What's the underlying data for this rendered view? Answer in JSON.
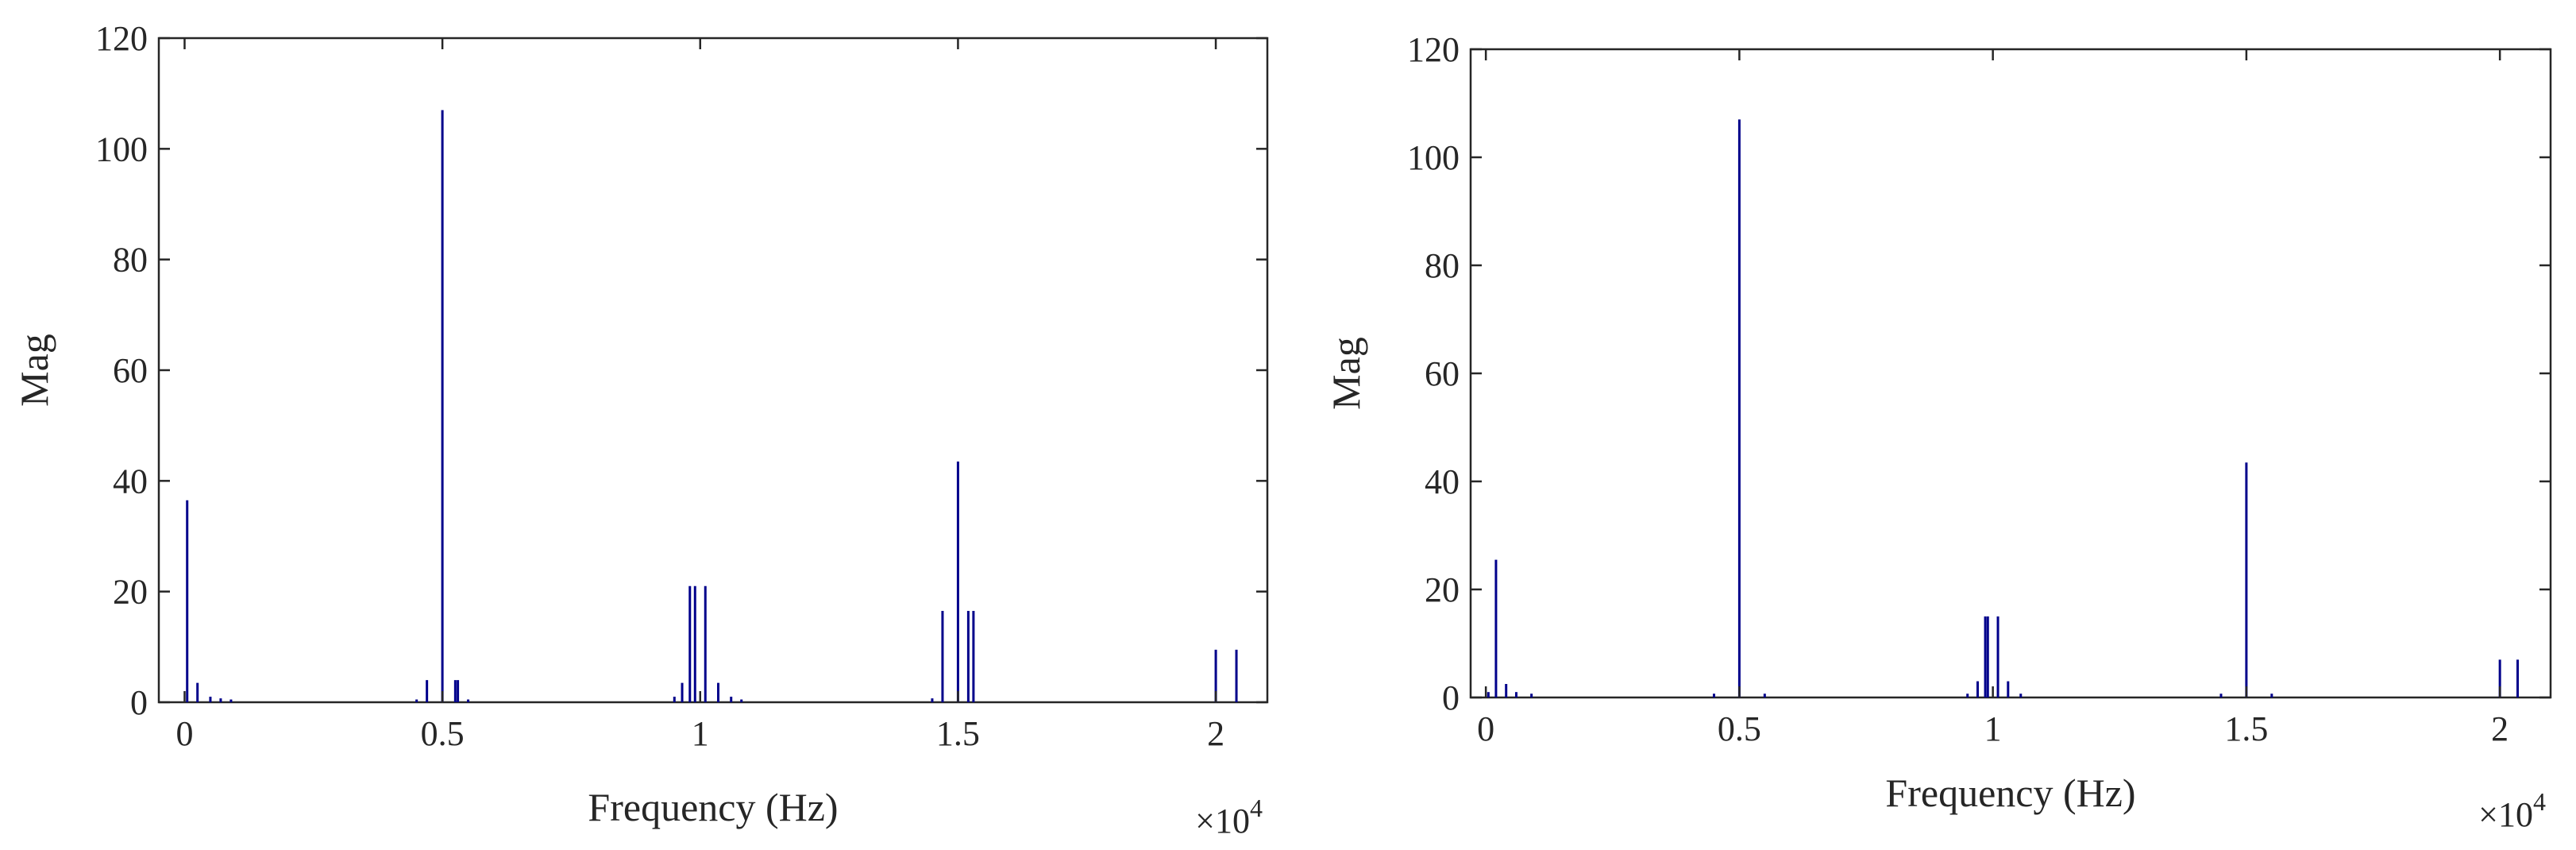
{
  "chart_data": [
    {
      "type": "bar",
      "title": "",
      "xlabel": "Frequency (Hz)",
      "ylabel": "Mag",
      "x_multiplier": "×10",
      "x_multiplier_exp": "4",
      "xlim": [
        -0.05,
        2.1
      ],
      "ylim": [
        0,
        120
      ],
      "xticks": [
        0,
        0.5,
        1,
        1.5,
        2
      ],
      "xtick_labels": [
        "0",
        "0.5",
        "1",
        "1.5",
        "2"
      ],
      "yticks": [
        0,
        20,
        40,
        60,
        80,
        100,
        120
      ],
      "ytick_labels": [
        "0",
        "20",
        "40",
        "60",
        "80",
        "100",
        "120"
      ],
      "color": "#00008b",
      "x": [
        0.005,
        0.025,
        0.05,
        0.07,
        0.09,
        0.45,
        0.47,
        0.5,
        0.525,
        0.53,
        0.55,
        0.95,
        0.965,
        0.98,
        0.99,
        1.01,
        1.035,
        1.06,
        1.08,
        1.45,
        1.47,
        1.5,
        1.52,
        1.53,
        2.0,
        2.04
      ],
      "values": [
        36.5,
        3.5,
        1.0,
        0.7,
        0.5,
        0.5,
        4.0,
        107,
        4.0,
        4.0,
        0.5,
        1.0,
        3.5,
        21,
        21,
        21,
        3.5,
        1.0,
        0.5,
        0.7,
        16.5,
        43.5,
        16.5,
        16.5,
        9.5,
        9.5
      ]
    },
    {
      "type": "bar",
      "title": "",
      "xlabel": "Frequency (Hz)",
      "ylabel": "Mag",
      "x_multiplier": "×10",
      "x_multiplier_exp": "4",
      "xlim": [
        -0.03,
        2.1
      ],
      "ylim": [
        0,
        120
      ],
      "xticks": [
        0,
        0.5,
        1,
        1.5,
        2
      ],
      "xtick_labels": [
        "0",
        "0.5",
        "1",
        "1.5",
        "2"
      ],
      "yticks": [
        0,
        20,
        40,
        60,
        80,
        100,
        120
      ],
      "ytick_labels": [
        "0",
        "20",
        "40",
        "60",
        "80",
        "100",
        "120"
      ],
      "color": "#00008b",
      "x": [
        0.005,
        0.02,
        0.04,
        0.06,
        0.09,
        0.45,
        0.5,
        0.55,
        0.95,
        0.97,
        0.985,
        0.99,
        1.01,
        1.03,
        1.055,
        1.45,
        1.5,
        1.55,
        2.0,
        2.035
      ],
      "values": [
        1.0,
        25.5,
        2.5,
        1.0,
        0.7,
        0.7,
        107,
        0.7,
        0.7,
        3.0,
        15,
        15,
        15,
        3.0,
        0.7,
        0.7,
        43.5,
        0.7,
        7.0,
        7.0
      ]
    }
  ]
}
